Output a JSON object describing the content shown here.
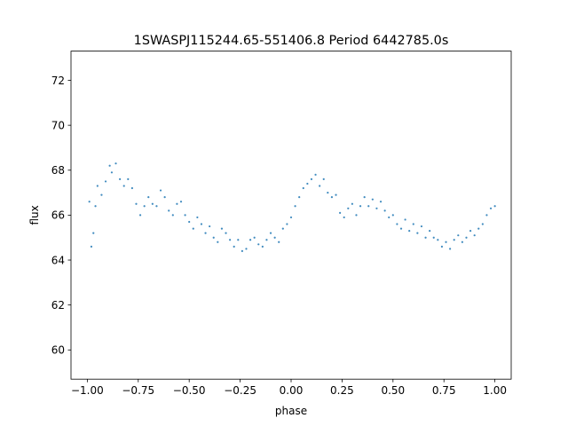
{
  "chart_data": {
    "type": "scatter",
    "title": "1SWASPJ115244.65-551406.8 Period 6442785.0s",
    "xlabel": "phase",
    "ylabel": "flux",
    "xlim": [
      -1.08,
      1.08
    ],
    "ylim": [
      58.7,
      73.3
    ],
    "xticks": [
      -1.0,
      -0.75,
      -0.5,
      -0.25,
      0.0,
      0.25,
      0.5,
      0.75,
      1.0
    ],
    "xtick_labels": [
      "−1.00",
      "−0.75",
      "−0.50",
      "−0.25",
      "0.00",
      "0.25",
      "0.50",
      "0.75",
      "1.00"
    ],
    "yticks": [
      60,
      62,
      64,
      66,
      68,
      70,
      72
    ],
    "ytick_labels": [
      "60",
      "62",
      "64",
      "66",
      "68",
      "70",
      "72"
    ],
    "grid": false,
    "marker_color": "#1f77b4",
    "series": [
      {
        "values": [
          [
            -0.99,
            66.6
          ],
          [
            -0.98,
            64.6
          ],
          [
            -0.97,
            65.2
          ],
          [
            -0.96,
            66.4
          ],
          [
            -0.95,
            67.3
          ],
          [
            -0.93,
            66.9
          ],
          [
            -0.91,
            67.5
          ],
          [
            -0.89,
            68.2
          ],
          [
            -0.88,
            67.9
          ],
          [
            -0.86,
            68.3
          ],
          [
            -0.84,
            67.6
          ],
          [
            -0.82,
            67.3
          ],
          [
            -0.8,
            67.6
          ],
          [
            -0.78,
            67.2
          ],
          [
            -0.76,
            66.5
          ],
          [
            -0.74,
            66.0
          ],
          [
            -0.72,
            66.4
          ],
          [
            -0.7,
            66.8
          ],
          [
            -0.68,
            66.5
          ],
          [
            -0.66,
            66.4
          ],
          [
            -0.64,
            67.1
          ],
          [
            -0.62,
            66.8
          ],
          [
            -0.6,
            66.2
          ],
          [
            -0.58,
            66.0
          ],
          [
            -0.56,
            66.5
          ],
          [
            -0.54,
            66.6
          ],
          [
            -0.52,
            66.0
          ],
          [
            -0.5,
            65.7
          ],
          [
            -0.48,
            65.4
          ],
          [
            -0.46,
            65.9
          ],
          [
            -0.44,
            65.6
          ],
          [
            -0.42,
            65.2
          ],
          [
            -0.4,
            65.5
          ],
          [
            -0.38,
            65.0
          ],
          [
            -0.36,
            64.8
          ],
          [
            -0.34,
            65.4
          ],
          [
            -0.32,
            65.2
          ],
          [
            -0.3,
            64.9
          ],
          [
            -0.28,
            64.6
          ],
          [
            -0.26,
            64.9
          ],
          [
            -0.24,
            64.4
          ],
          [
            -0.22,
            64.5
          ],
          [
            -0.2,
            64.9
          ],
          [
            -0.18,
            65.0
          ],
          [
            -0.16,
            64.7
          ],
          [
            -0.14,
            64.6
          ],
          [
            -0.12,
            64.9
          ],
          [
            -0.1,
            65.2
          ],
          [
            -0.08,
            65.0
          ],
          [
            -0.06,
            64.8
          ],
          [
            -0.04,
            65.4
          ],
          [
            -0.02,
            65.6
          ],
          [
            0.0,
            65.9
          ],
          [
            0.02,
            66.4
          ],
          [
            0.04,
            66.8
          ],
          [
            0.06,
            67.2
          ],
          [
            0.08,
            67.4
          ],
          [
            0.1,
            67.6
          ],
          [
            0.12,
            67.8
          ],
          [
            0.14,
            67.3
          ],
          [
            0.16,
            67.6
          ],
          [
            0.18,
            67.0
          ],
          [
            0.2,
            66.8
          ],
          [
            0.22,
            66.9
          ],
          [
            0.24,
            66.1
          ],
          [
            0.26,
            65.9
          ],
          [
            0.28,
            66.3
          ],
          [
            0.3,
            66.5
          ],
          [
            0.32,
            66.0
          ],
          [
            0.34,
            66.4
          ],
          [
            0.36,
            66.8
          ],
          [
            0.38,
            66.4
          ],
          [
            0.4,
            66.7
          ],
          [
            0.42,
            66.3
          ],
          [
            0.44,
            66.6
          ],
          [
            0.46,
            66.2
          ],
          [
            0.48,
            65.9
          ],
          [
            0.5,
            66.0
          ],
          [
            0.52,
            65.6
          ],
          [
            0.54,
            65.4
          ],
          [
            0.56,
            65.8
          ],
          [
            0.58,
            65.3
          ],
          [
            0.6,
            65.6
          ],
          [
            0.62,
            65.2
          ],
          [
            0.64,
            65.5
          ],
          [
            0.66,
            65.0
          ],
          [
            0.68,
            65.3
          ],
          [
            0.7,
            65.0
          ],
          [
            0.72,
            64.9
          ],
          [
            0.74,
            64.6
          ],
          [
            0.76,
            64.8
          ],
          [
            0.78,
            64.5
          ],
          [
            0.8,
            64.9
          ],
          [
            0.82,
            65.1
          ],
          [
            0.84,
            64.8
          ],
          [
            0.86,
            65.0
          ],
          [
            0.88,
            65.3
          ],
          [
            0.9,
            65.1
          ],
          [
            0.92,
            65.4
          ],
          [
            0.94,
            65.6
          ],
          [
            0.96,
            66.0
          ],
          [
            0.98,
            66.3
          ],
          [
            1.0,
            66.4
          ]
        ]
      }
    ]
  }
}
